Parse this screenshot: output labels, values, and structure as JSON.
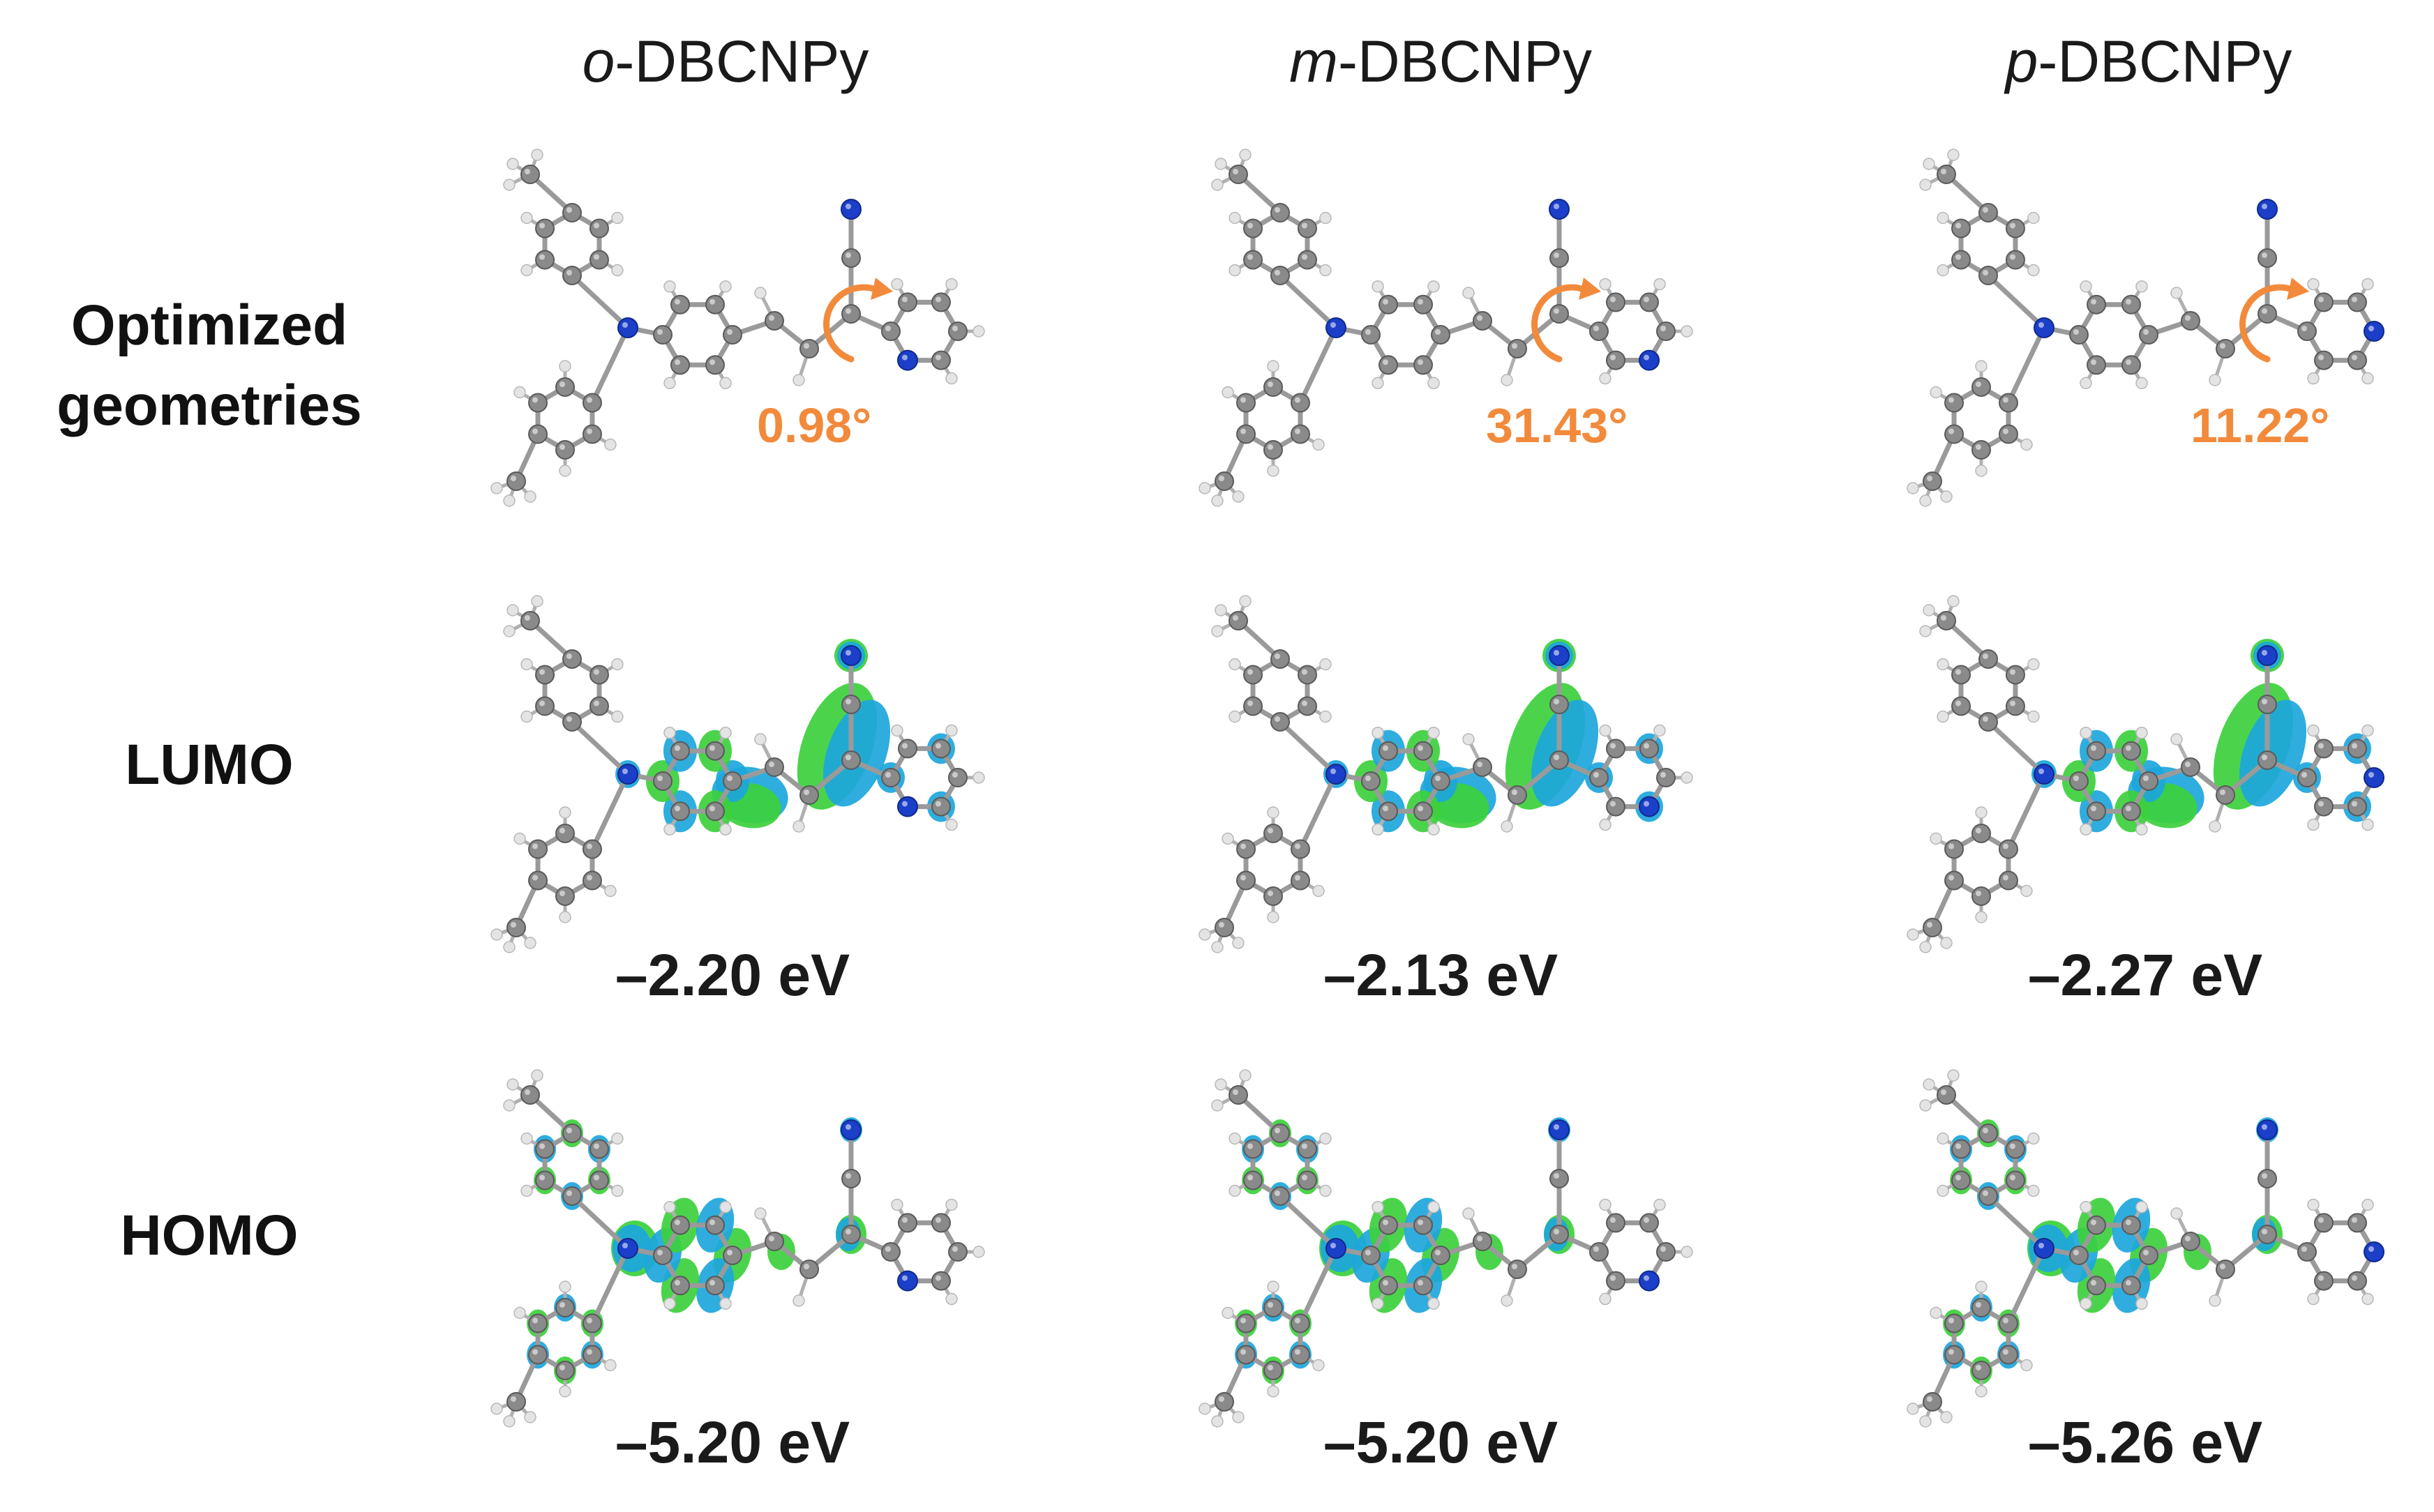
{
  "columns": [
    {
      "prefix": "o",
      "suffix": "-DBCNPy",
      "angle": "0.98°",
      "lumo": "–2.20 eV",
      "homo": "–5.20 eV",
      "variant": "o"
    },
    {
      "prefix": "m",
      "suffix": "-DBCNPy",
      "angle": "31.43°",
      "lumo": "–2.13 eV",
      "homo": "–5.20 eV",
      "variant": "m"
    },
    {
      "prefix": "p",
      "suffix": "-DBCNPy",
      "angle": "11.22°",
      "lumo": "–2.27 eV",
      "homo": "–5.26 eV",
      "variant": "p"
    }
  ],
  "rows": {
    "geometry": {
      "line1": "Optimized",
      "line2": "geometries"
    },
    "lumo": "LUMO",
    "homo": "HOMO"
  },
  "colors": {
    "carbon": "#8a8a8a",
    "hydrogen": "#e4e4e4",
    "nitrogen": "#1b3fc8",
    "orbital_blue": "#1da6dc",
    "orbital_green": "#3cd03c",
    "angle_orange": "#f28a3c"
  }
}
